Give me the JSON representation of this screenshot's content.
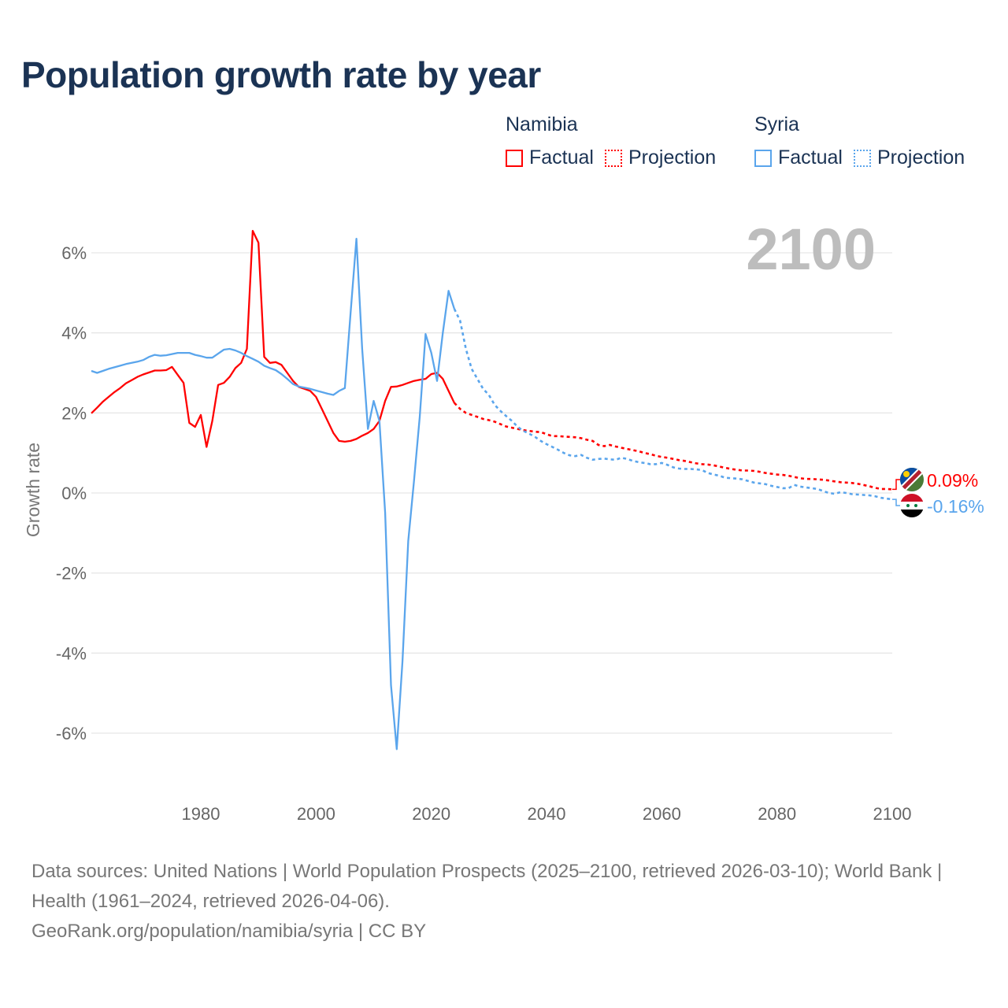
{
  "title": "Population growth rate by year",
  "legend": {
    "groups": [
      {
        "name": "Namibia",
        "factual": "Factual",
        "projection": "Projection",
        "color": "#ff0000"
      },
      {
        "name": "Syria",
        "factual": "Factual",
        "projection": "Projection",
        "color": "#5aa5ec"
      }
    ]
  },
  "sources": {
    "line1": "Data sources: United Nations | World Population Prospects (2025–2100, retrieved 2026-03-10); World Bank | Health (1961–2024, retrieved 2026-04-06).",
    "line2": "GeoRank.org/population/namibia/syria | CC BY"
  },
  "chart_data": {
    "type": "line",
    "title": "Population growth rate by year",
    "xlabel": "",
    "ylabel": "Growth rate",
    "current_year_label": "2100",
    "xlim": [
      1961,
      2100
    ],
    "ylim": [
      -7,
      7
    ],
    "x_ticks": [
      "1980",
      "2000",
      "2020",
      "2040",
      "2060",
      "2080",
      "2100"
    ],
    "x_tick_values": [
      1980,
      2000,
      2020,
      2040,
      2060,
      2080,
      2100
    ],
    "y_ticks": [
      "6%",
      "4%",
      "2%",
      "0%",
      "-2%",
      "-4%",
      "-6%"
    ],
    "y_tick_values": [
      6,
      4,
      2,
      0,
      -2,
      -4,
      -6
    ],
    "grid": true,
    "legend_position": "top-right",
    "series": [
      {
        "name": "Namibia",
        "color": "#ff0000",
        "flag": "namibia-flag",
        "end_label": "0.09%",
        "factual_start": 1961,
        "factual": [
          1.99,
          2.13,
          2.28,
          2.4,
          2.52,
          2.62,
          2.74,
          2.82,
          2.9,
          2.96,
          3.01,
          3.06,
          3.06,
          3.07,
          3.15,
          2.95,
          2.75,
          1.75,
          1.65,
          1.95,
          1.15,
          1.8,
          2.7,
          2.75,
          2.9,
          3.12,
          3.25,
          3.6,
          6.55,
          6.25,
          3.4,
          3.25,
          3.27,
          3.2,
          3.0,
          2.8,
          2.65,
          2.6,
          2.55,
          2.4,
          2.1,
          1.8,
          1.5,
          1.3,
          1.28,
          1.3,
          1.35,
          1.43,
          1.5,
          1.6,
          1.8,
          2.3,
          2.65,
          2.66,
          2.7,
          2.75,
          2.8,
          2.83,
          2.85,
          2.97,
          3.0,
          2.85,
          2.55,
          2.25
        ],
        "projection_start": 2025,
        "projection": [
          2.1,
          2.0,
          1.95,
          1.9,
          1.85,
          1.82,
          1.78,
          1.72,
          1.66,
          1.63,
          1.6,
          1.57,
          1.55,
          1.53,
          1.52,
          1.47,
          1.42,
          1.42,
          1.41,
          1.4,
          1.39,
          1.37,
          1.33,
          1.3,
          1.2,
          1.17,
          1.2,
          1.16,
          1.13,
          1.1,
          1.07,
          1.04,
          1.0,
          0.97,
          0.93,
          0.9,
          0.88,
          0.85,
          0.82,
          0.8,
          0.77,
          0.74,
          0.72,
          0.71,
          0.69,
          0.66,
          0.63,
          0.6,
          0.58,
          0.56,
          0.56,
          0.55,
          0.53,
          0.5,
          0.48,
          0.46,
          0.45,
          0.43,
          0.4,
          0.37,
          0.35,
          0.35,
          0.34,
          0.33,
          0.31,
          0.29,
          0.27,
          0.26,
          0.25,
          0.23,
          0.2,
          0.17,
          0.13,
          0.1,
          0.1,
          0.09
        ]
      },
      {
        "name": "Syria",
        "color": "#5aa5ec",
        "flag": "syria-flag",
        "end_label": "-0.16%",
        "factual_start": 1961,
        "factual": [
          3.05,
          3.0,
          3.05,
          3.1,
          3.14,
          3.18,
          3.22,
          3.25,
          3.28,
          3.32,
          3.4,
          3.45,
          3.43,
          3.44,
          3.47,
          3.5,
          3.5,
          3.5,
          3.45,
          3.42,
          3.38,
          3.38,
          3.48,
          3.58,
          3.6,
          3.56,
          3.5,
          3.42,
          3.35,
          3.28,
          3.18,
          3.12,
          3.07,
          2.97,
          2.85,
          2.72,
          2.66,
          2.63,
          2.6,
          2.56,
          2.52,
          2.48,
          2.45,
          2.55,
          2.62,
          4.5,
          6.35,
          3.6,
          1.6,
          2.3,
          1.8,
          -0.5,
          -4.8,
          -6.4,
          -4.2,
          -1.2,
          0.3,
          1.9,
          3.97,
          3.5,
          2.8,
          4.0,
          5.05,
          4.6
        ],
        "projection_start": 2025,
        "projection": [
          4.3,
          3.6,
          3.1,
          2.85,
          2.6,
          2.45,
          2.2,
          2.05,
          1.92,
          1.8,
          1.65,
          1.55,
          1.48,
          1.4,
          1.3,
          1.22,
          1.15,
          1.08,
          1.0,
          0.94,
          0.92,
          0.95,
          0.88,
          0.83,
          0.85,
          0.86,
          0.84,
          0.83,
          0.88,
          0.85,
          0.8,
          0.77,
          0.75,
          0.72,
          0.72,
          0.75,
          0.7,
          0.64,
          0.61,
          0.6,
          0.6,
          0.59,
          0.57,
          0.5,
          0.46,
          0.43,
          0.38,
          0.37,
          0.36,
          0.34,
          0.3,
          0.26,
          0.24,
          0.22,
          0.18,
          0.15,
          0.12,
          0.12,
          0.2,
          0.16,
          0.14,
          0.12,
          0.1,
          0.05,
          0.0,
          -0.02,
          0.02,
          0.0,
          -0.03,
          -0.04,
          -0.05,
          -0.06,
          -0.08,
          -0.12,
          -0.14,
          -0.16
        ]
      }
    ]
  }
}
